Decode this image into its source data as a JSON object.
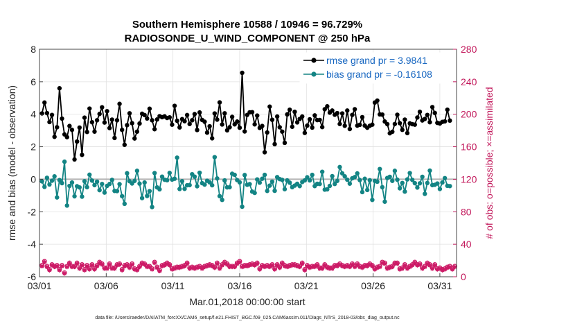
{
  "chart_data": {
    "type": "line",
    "title": "Southern Hemisphere 10588 / 10946 = 96.729%",
    "subtitle": "RADIOSONDE_U_WIND_COMPONENT @ 250 hPa",
    "xlabel": "Mar.01,2018 00:00:00 start",
    "ylabel": "rmse and bias (model - observation)",
    "ylabel_right": "# of obs: o=possible; ×=assimilated",
    "footnote": "data file: /Users/raeder/DAI/ATM_forcXX/CAM6_setup/f.e21.FHIST_BGC.f09_025.CAM6assim.011/Diags_NTrS_2018-03/obs_diag_output.nc",
    "ylim": [
      -6,
      8
    ],
    "ylim_right": [
      0,
      280
    ],
    "yticks": [
      "8",
      "6",
      "4",
      "2",
      "0",
      "-2",
      "-4",
      "-6"
    ],
    "yticks_right": [
      "280",
      "240",
      "200",
      "160",
      "120",
      "80",
      "40",
      "0"
    ],
    "xlim": [
      0,
      31.25
    ],
    "xtick_labels": [
      "03/01",
      "03/06",
      "03/11",
      "03/16",
      "03/21",
      "03/26",
      "03/31"
    ],
    "legend": {
      "rmse_label": "rmse grand pr = 3.9841",
      "bias_label": "bias grand pr = -0.16108"
    },
    "colors": {
      "rmse": "#000000",
      "bias": "#138484",
      "obs": "#cc1a66",
      "zero": "#b3b3b3"
    },
    "rmse": [
      4.05,
      4.72,
      4.07,
      3.52,
      3.96,
      2.61,
      3.2,
      5.6,
      3.73,
      2.76,
      2.59,
      3.28,
      3.04,
      1.22,
      2.32,
      3.18,
      1.5,
      3.79,
      2.91,
      4.35,
      3.51,
      2.93,
      3.63,
      4.02,
      4.43,
      3.49,
      4.19,
      3.15,
      3.67,
      2.54,
      3.63,
      4.64,
      3.04,
      2.12,
      3.33,
      4.06,
      3.45,
      2.51,
      2.93,
      3.43,
      4.03,
      3.95,
      3.74,
      4.34,
      3.63,
      3.08,
      3.68,
      3.88,
      3.82,
      3.87,
      3.77,
      3.81,
      3.36,
      4.52,
      3.6,
      3.19,
      3.7,
      3.57,
      3.95,
      3.4,
      3.63,
      4.01,
      3.03,
      4.11,
      3.65,
      3.54,
      2.87,
      3.26,
      2.52,
      4.05,
      3.67,
      4.73,
      3.37,
      4.06,
      3.01,
      3.2,
      3.84,
      3.38,
      3.55,
      3.17,
      6.55,
      2.94,
      3.96,
      4.12,
      4.13,
      3.38,
      3.92,
      3.16,
      3.28,
      1.66,
      2.88,
      4.47,
      3.66,
      2.16,
      3.86,
      3.2,
      2.93,
      2.24,
      3.99,
      4.28,
      3.23,
      4.15,
      3.5,
      3.71,
      3.86,
      2.85,
      3.3,
      3.69,
      3.18,
      3.93,
      3.64,
      3.65,
      3.21,
      4.31,
      4.49,
      4.1,
      4.23,
      3.97,
      4.07,
      3.4,
      4.05,
      3.29,
      4.23,
      3.09,
      3.96,
      4.31,
      3.3,
      3.35,
      3.82,
      3.3,
      3.17,
      3.29,
      3.36,
      4.72,
      4.84,
      3.99,
      3.98,
      3.55,
      3.39,
      2.83,
      2.92,
      3.4,
      3.97,
      3.45,
      3.04,
      3.67,
      2.84,
      3.44,
      3.39,
      3.36,
      3.8,
      4.15,
      3.62,
      3.71,
      3.96,
      3.51,
      4.44,
      4.08,
      3.47,
      3.43,
      3.53,
      3.56,
      4.28,
      3.61
    ],
    "bias": [
      -0.13,
      -0.47,
      0.09,
      -0.32,
      -0.09,
      0.18,
      -1.12,
      -0.05,
      -0.24,
      1.08,
      -1.62,
      -0.41,
      -0.2,
      -1.05,
      -0.43,
      -0.5,
      -1.07,
      -0.12,
      -0.49,
      0.28,
      -0.08,
      -0.36,
      -0.15,
      -0.67,
      -0.29,
      -0.82,
      -0.41,
      -0.29,
      -0.04,
      -0.72,
      -0.73,
      -0.3,
      -1.04,
      -1.51,
      0.37,
      -0.12,
      -0.26,
      -0.1,
      0.52,
      -0.27,
      -1.16,
      -0.2,
      -1.03,
      -0.73,
      -1.71,
      0.38,
      -0.5,
      -0.62,
      0.16,
      -0.03,
      -0.06,
      0.39,
      -0.02,
      0.03,
      1.33,
      -0.6,
      -0.12,
      -0.59,
      -0.37,
      -0.36,
      0.31,
      0.16,
      -0.43,
      0.4,
      -0.24,
      -0.33,
      -0.09,
      -0.19,
      -0.37,
      1.36,
      0.05,
      -1.04,
      -1.27,
      -0.07,
      -0.5,
      -0.49,
      0.34,
      0.27,
      -0.05,
      -0.19,
      -1.69,
      0.26,
      -0.34,
      -0.3,
      -0.76,
      -0.84,
      -0.01,
      -0.21,
      0.03,
      0.27,
      -0.72,
      -0.39,
      -0.15,
      -0.71,
      0.13,
      0.01,
      -0.04,
      -0.61,
      -0.07,
      -0.21,
      -0.49,
      -0.39,
      -0.28,
      -0.42,
      -0.17,
      -0.07,
      0.12,
      -0.07,
      0.27,
      -0.42,
      -0.28,
      -0.29,
      0.46,
      -0.64,
      -0.62,
      -0.41,
      0.19,
      -0.29,
      -0.1,
      0.75,
      0.36,
      0.18,
      -0.03,
      -0.27,
      0.06,
      0.13,
      0.36,
      -0.05,
      -0.79,
      0.03,
      -0.66,
      -0.06,
      -1.27,
      -0.1,
      -0.15,
      0.63,
      -0.49,
      -1.38,
      0.08,
      0.15,
      -0.1,
      0.52,
      -0.03,
      -0.56,
      -0.23,
      -0.76,
      -0.01,
      0.38,
      -0.04,
      -0.24,
      -0.51,
      -0.25,
      0.15,
      -0.9,
      -0.23,
      0.53,
      -0.36,
      -0.34,
      -0.26,
      -0.6,
      -0.2,
      0.07,
      -0.4,
      -0.42
    ],
    "n_possible": [
      14,
      19,
      13,
      9,
      15,
      13,
      14,
      9,
      14,
      5,
      13,
      17,
      13,
      13,
      17,
      11,
      15,
      9,
      14,
      10,
      15,
      10,
      14,
      18,
      16,
      11,
      11,
      16,
      11,
      11,
      15,
      16,
      9,
      14,
      15,
      12,
      16,
      10,
      9,
      13,
      17,
      16,
      13,
      13,
      10,
      18,
      12,
      8,
      14,
      15,
      17,
      15,
      10,
      11,
      12,
      12,
      13,
      14,
      17,
      11,
      12,
      11,
      12,
      13,
      11,
      13,
      14,
      15,
      14,
      12,
      17,
      11,
      15,
      18,
      16,
      13,
      13,
      13,
      17,
      19,
      13,
      14,
      14,
      15,
      16,
      15,
      17,
      10,
      14,
      13,
      14,
      13,
      15,
      10,
      15,
      12,
      17,
      14,
      13,
      14,
      15,
      15,
      14,
      13,
      17,
      9,
      14,
      12,
      13,
      13,
      15,
      11,
      11,
      15,
      12,
      11,
      11,
      14,
      14,
      16,
      14,
      13,
      14,
      13,
      16,
      13,
      16,
      13,
      12,
      14,
      14,
      16,
      14,
      10,
      12,
      13,
      18,
      17,
      11,
      12,
      13,
      17,
      17,
      10,
      11,
      15,
      11,
      13,
      15,
      18,
      15,
      16,
      11,
      13,
      17,
      15,
      11,
      15,
      10,
      11,
      9,
      10,
      12,
      13,
      10,
      13
    ],
    "n_assimilated": [
      13,
      18,
      12,
      8,
      14,
      12,
      13,
      8,
      13,
      4,
      12,
      16,
      12,
      12,
      16,
      10,
      14,
      8,
      13,
      9,
      14,
      9,
      13,
      17,
      15,
      10,
      10,
      15,
      10,
      10,
      14,
      15,
      8,
      13,
      14,
      11,
      15,
      9,
      8,
      12,
      16,
      15,
      12,
      12,
      9,
      17,
      11,
      7,
      13,
      14,
      16,
      14,
      9,
      10,
      11,
      11,
      12,
      13,
      16,
      10,
      11,
      10,
      11,
      12,
      10,
      12,
      13,
      14,
      13,
      11,
      16,
      10,
      14,
      17,
      15,
      12,
      12,
      12,
      16,
      18,
      12,
      13,
      13,
      14,
      15,
      14,
      16,
      9,
      13,
      12,
      13,
      12,
      14,
      9,
      14,
      11,
      16,
      13,
      12,
      13,
      14,
      14,
      13,
      12,
      16,
      8,
      13,
      11,
      12,
      12,
      14,
      10,
      10,
      14,
      11,
      10,
      10,
      13,
      13,
      15,
      13,
      12,
      13,
      12,
      15,
      12,
      15,
      12,
      11,
      13,
      13,
      15,
      13,
      9,
      11,
      12,
      17,
      16,
      10,
      11,
      12,
      16,
      16,
      9,
      10,
      14,
      10,
      12,
      14,
      17,
      14,
      15,
      10,
      12,
      16,
      14,
      10,
      14,
      9,
      10,
      8,
      9,
      11,
      12,
      9,
      12
    ]
  }
}
